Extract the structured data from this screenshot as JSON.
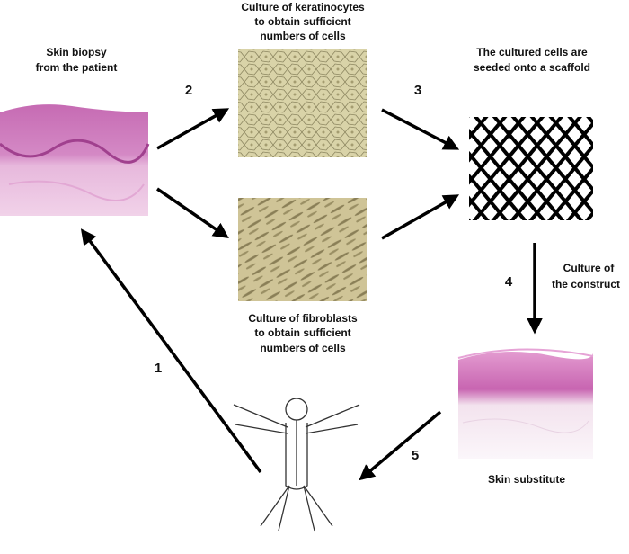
{
  "nodes": [
    {
      "label": [
        "Skin biopsy",
        "from the patient"
      ]
    },
    {
      "label": [
        "Culture of keratinocytes",
        "to obtain sufficient",
        "numbers of cells"
      ]
    },
    {
      "label": [
        "Culture of fibroblasts",
        "to obtain sufficient",
        "numbers of cells"
      ]
    },
    {
      "label": [
        "The cultured cells are",
        "seeded onto a scaffold"
      ]
    },
    {
      "label": [
        "Skin substitute"
      ]
    }
  ],
  "steps": [
    {
      "number": "1"
    },
    {
      "number": "2"
    },
    {
      "number": "3"
    },
    {
      "number": "4",
      "label": [
        "Culture of",
        "the construct"
      ]
    },
    {
      "number": "5"
    }
  ]
}
